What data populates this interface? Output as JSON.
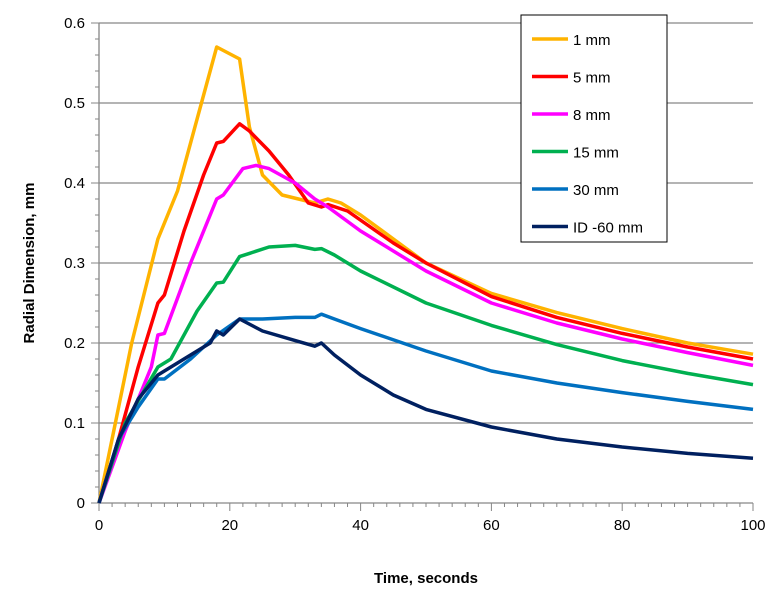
{
  "chart_data": {
    "type": "line",
    "title": "",
    "xlabel": "Time, seconds",
    "ylabel": "Radial Dimension, mm",
    "xlim": [
      0,
      100
    ],
    "ylim": [
      0,
      0.6
    ],
    "xticks": [
      "0",
      "20",
      "40",
      "60",
      "80",
      "100"
    ],
    "yticks": [
      "0",
      "0.1",
      "0.2",
      "0.3",
      "0.4",
      "0.5",
      "0.6"
    ],
    "grid": "horizontal major gridlines",
    "legend": "top-right",
    "series": [
      {
        "name": "1 mm",
        "color": "#FFB300",
        "points": [
          [
            0,
            0
          ],
          [
            2,
            0.08
          ],
          [
            5,
            0.2
          ],
          [
            9,
            0.33
          ],
          [
            12,
            0.39
          ],
          [
            18,
            0.57
          ],
          [
            21.5,
            0.555
          ],
          [
            23,
            0.47
          ],
          [
            25,
            0.41
          ],
          [
            28,
            0.385
          ],
          [
            33,
            0.375
          ],
          [
            35,
            0.38
          ],
          [
            37,
            0.375
          ],
          [
            40,
            0.36
          ],
          [
            50,
            0.3
          ],
          [
            60,
            0.262
          ],
          [
            70,
            0.238
          ],
          [
            80,
            0.218
          ],
          [
            90,
            0.2
          ],
          [
            100,
            0.186
          ]
        ]
      },
      {
        "name": "5 mm",
        "color": "#FF0000",
        "points": [
          [
            0,
            0
          ],
          [
            3,
            0.08
          ],
          [
            6,
            0.17
          ],
          [
            9,
            0.25
          ],
          [
            10,
            0.26
          ],
          [
            13,
            0.34
          ],
          [
            16,
            0.41
          ],
          [
            18,
            0.45
          ],
          [
            19,
            0.452
          ],
          [
            21.5,
            0.474
          ],
          [
            23,
            0.465
          ],
          [
            26,
            0.44
          ],
          [
            29,
            0.41
          ],
          [
            32,
            0.375
          ],
          [
            34,
            0.37
          ],
          [
            35,
            0.373
          ],
          [
            38,
            0.365
          ],
          [
            45,
            0.325
          ],
          [
            50,
            0.3
          ],
          [
            60,
            0.258
          ],
          [
            70,
            0.232
          ],
          [
            80,
            0.212
          ],
          [
            90,
            0.195
          ],
          [
            100,
            0.18
          ]
        ]
      },
      {
        "name": "8 mm",
        "color": "#FF00FF",
        "points": [
          [
            0,
            0
          ],
          [
            4,
            0.09
          ],
          [
            8,
            0.17
          ],
          [
            9,
            0.21
          ],
          [
            10,
            0.212
          ],
          [
            14,
            0.3
          ],
          [
            18,
            0.38
          ],
          [
            19,
            0.385
          ],
          [
            22,
            0.418
          ],
          [
            24,
            0.422
          ],
          [
            26,
            0.418
          ],
          [
            30,
            0.4
          ],
          [
            33,
            0.38
          ],
          [
            35,
            0.37
          ],
          [
            40,
            0.34
          ],
          [
            50,
            0.29
          ],
          [
            60,
            0.25
          ],
          [
            70,
            0.225
          ],
          [
            80,
            0.205
          ],
          [
            90,
            0.188
          ],
          [
            100,
            0.172
          ]
        ]
      },
      {
        "name": "15 mm",
        "color": "#00B050",
        "points": [
          [
            0,
            0
          ],
          [
            4,
            0.1
          ],
          [
            9,
            0.17
          ],
          [
            11,
            0.18
          ],
          [
            15,
            0.24
          ],
          [
            18,
            0.275
          ],
          [
            19,
            0.276
          ],
          [
            21.5,
            0.308
          ],
          [
            23,
            0.312
          ],
          [
            26,
            0.32
          ],
          [
            30,
            0.322
          ],
          [
            33,
            0.317
          ],
          [
            34,
            0.318
          ],
          [
            36,
            0.31
          ],
          [
            40,
            0.29
          ],
          [
            50,
            0.25
          ],
          [
            60,
            0.222
          ],
          [
            70,
            0.198
          ],
          [
            80,
            0.178
          ],
          [
            90,
            0.162
          ],
          [
            100,
            0.148
          ]
        ]
      },
      {
        "name": "30 mm",
        "color": "#0070C0",
        "points": [
          [
            0,
            0
          ],
          [
            3,
            0.08
          ],
          [
            6,
            0.12
          ],
          [
            9,
            0.155
          ],
          [
            10,
            0.155
          ],
          [
            14,
            0.18
          ],
          [
            18,
            0.21
          ],
          [
            21.5,
            0.23
          ],
          [
            25,
            0.23
          ],
          [
            30,
            0.232
          ],
          [
            33,
            0.232
          ],
          [
            34,
            0.236
          ],
          [
            36,
            0.23
          ],
          [
            40,
            0.218
          ],
          [
            50,
            0.19
          ],
          [
            60,
            0.165
          ],
          [
            70,
            0.15
          ],
          [
            80,
            0.138
          ],
          [
            90,
            0.127
          ],
          [
            100,
            0.117
          ]
        ]
      },
      {
        "name": "ID -60 mm",
        "color": "#002060",
        "points": [
          [
            0,
            0
          ],
          [
            3,
            0.08
          ],
          [
            6,
            0.13
          ],
          [
            9,
            0.16
          ],
          [
            10,
            0.165
          ],
          [
            13,
            0.18
          ],
          [
            17,
            0.2
          ],
          [
            18,
            0.215
          ],
          [
            19,
            0.21
          ],
          [
            21.5,
            0.23
          ],
          [
            25,
            0.215
          ],
          [
            30,
            0.203
          ],
          [
            33,
            0.196
          ],
          [
            34,
            0.2
          ],
          [
            36,
            0.185
          ],
          [
            40,
            0.16
          ],
          [
            45,
            0.135
          ],
          [
            50,
            0.117
          ],
          [
            60,
            0.095
          ],
          [
            70,
            0.08
          ],
          [
            80,
            0.07
          ],
          [
            90,
            0.062
          ],
          [
            100,
            0.056
          ]
        ]
      }
    ]
  }
}
